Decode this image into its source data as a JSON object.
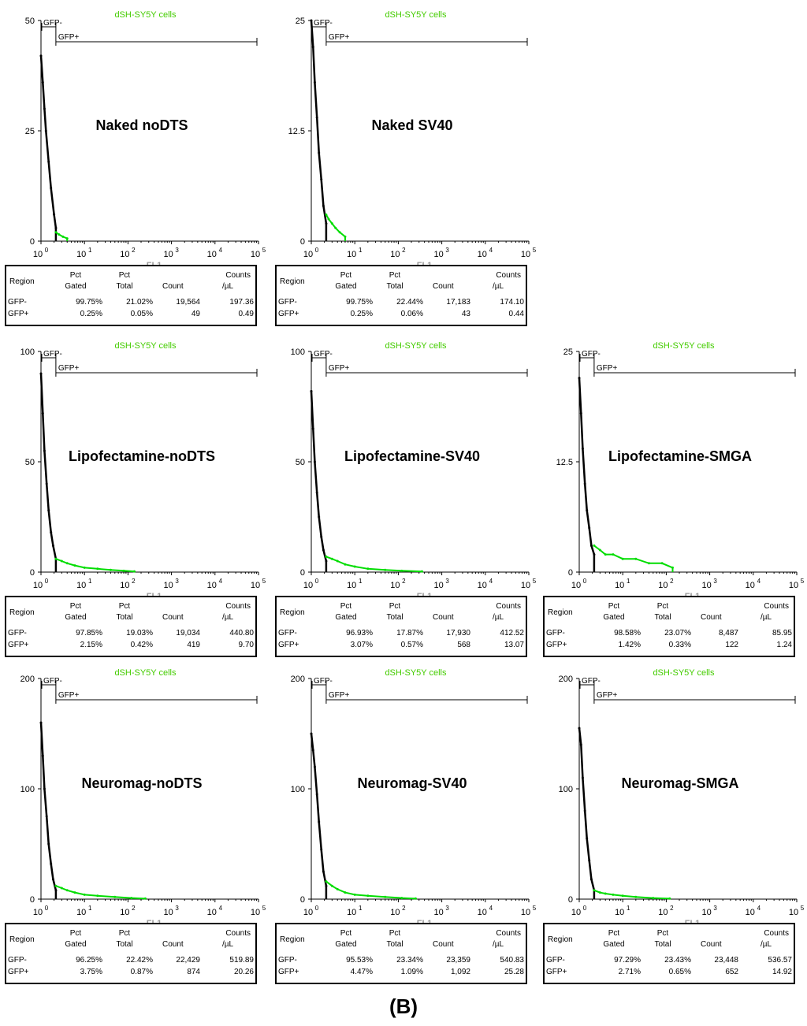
{
  "figure_label": "(B)",
  "colors": {
    "negative": "#000000",
    "positive": "#00dd00",
    "sample_label": "#44cc00",
    "axis_label": "#999999"
  },
  "x_axis_label": "FL1",
  "stats_headers": {
    "region": "Region",
    "pct_gated": [
      "Pct",
      "Gated"
    ],
    "pct_total": [
      "Pct",
      "Total"
    ],
    "count": "Count",
    "counts_ul": [
      "Counts",
      "/µL"
    ]
  },
  "chart_data": [
    {
      "type": "histogram",
      "title": "Naked noDTS",
      "sample_label": "dSH-SY5Y cells",
      "xlabel": "FL1",
      "x_scale": "log",
      "xlim": [
        1,
        100000
      ],
      "x_ticks": [
        "10",
        "10",
        "10",
        "10",
        "10",
        "10"
      ],
      "x_tick_exponents": [
        "0",
        "1",
        "2",
        "3",
        "4",
        "5"
      ],
      "y_ticks": [
        "0",
        "25",
        "50"
      ],
      "ylim": [
        0,
        50
      ],
      "gates": [
        {
          "name": "GFP-",
          "range": [
            1,
            2.2
          ]
        },
        {
          "name": "GFP+",
          "range": [
            2.2,
            100000
          ]
        }
      ],
      "series": [
        {
          "name": "GFP-",
          "x": [
            1.0,
            1.1,
            1.2,
            1.3,
            1.5,
            1.7,
            2.0,
            2.2
          ],
          "y": [
            42,
            36,
            30,
            25,
            18,
            12,
            6,
            3
          ]
        },
        {
          "name": "GFP+",
          "x": [
            2.2,
            2.6,
            3.2,
            4.0
          ],
          "y": [
            2,
            1.5,
            1,
            0.6
          ]
        }
      ],
      "stats": [
        {
          "region": "GFP-",
          "pct_gated": "99.75%",
          "pct_total": "21.02%",
          "count": "19,564",
          "counts_per_ul": "197.36"
        },
        {
          "region": "GFP+",
          "pct_gated": "0.25%",
          "pct_total": "0.05%",
          "count": "49",
          "counts_per_ul": "0.49"
        }
      ]
    },
    {
      "type": "histogram",
      "title": "Naked SV40",
      "sample_label": "dSH-SY5Y cells",
      "xlabel": "FL1",
      "x_scale": "log",
      "xlim": [
        1,
        100000
      ],
      "x_ticks": [
        "10",
        "10",
        "10",
        "10",
        "10",
        "10"
      ],
      "x_tick_exponents": [
        "0",
        "1",
        "2",
        "3",
        "4",
        "5"
      ],
      "y_ticks": [
        "0",
        "12.5",
        "25"
      ],
      "ylim": [
        0,
        25
      ],
      "gates": [
        {
          "name": "GFP-",
          "range": [
            1,
            2.2
          ]
        },
        {
          "name": "GFP+",
          "range": [
            2.2,
            100000
          ]
        }
      ],
      "series": [
        {
          "name": "GFP-",
          "x": [
            1.0,
            1.1,
            1.2,
            1.35,
            1.5,
            1.7,
            1.9,
            2.2
          ],
          "y": [
            25,
            22,
            18,
            14,
            10,
            7,
            4,
            2
          ]
        },
        {
          "name": "GFP+",
          "x": [
            2.2,
            2.5,
            3.0,
            3.6,
            4.5,
            6.0
          ],
          "y": [
            3,
            2.5,
            2,
            1.5,
            1,
            0.5
          ]
        }
      ],
      "stats": [
        {
          "region": "GFP-",
          "pct_gated": "99.75%",
          "pct_total": "22.44%",
          "count": "17,183",
          "counts_per_ul": "174.10"
        },
        {
          "region": "GFP+",
          "pct_gated": "0.25%",
          "pct_total": "0.06%",
          "count": "43",
          "counts_per_ul": "0.44"
        }
      ]
    },
    {
      "type": "histogram",
      "title": "Lipofectamine-noDTS",
      "sample_label": "dSH-SY5Y cells",
      "xlabel": "FL1",
      "x_scale": "log",
      "xlim": [
        1,
        100000
      ],
      "x_ticks": [
        "10",
        "10",
        "10",
        "10",
        "10",
        "10"
      ],
      "x_tick_exponents": [
        "0",
        "1",
        "2",
        "3",
        "4",
        "5"
      ],
      "y_ticks": [
        "0",
        "50",
        "100"
      ],
      "ylim": [
        0,
        100
      ],
      "gates": [
        {
          "name": "GFP-",
          "range": [
            1,
            2.2
          ]
        },
        {
          "name": "GFP+",
          "range": [
            2.2,
            100000
          ]
        }
      ],
      "series": [
        {
          "name": "GFP-",
          "x": [
            1.0,
            1.1,
            1.2,
            1.35,
            1.5,
            1.7,
            1.9,
            2.2
          ],
          "y": [
            90,
            72,
            55,
            40,
            28,
            18,
            12,
            6
          ]
        },
        {
          "name": "GFP+",
          "x": [
            2.2,
            3,
            4,
            6,
            10,
            20,
            40,
            80,
            140
          ],
          "y": [
            6,
            5,
            4,
            3,
            2,
            1.5,
            1,
            0.6,
            0.3
          ]
        }
      ],
      "stats": [
        {
          "region": "GFP-",
          "pct_gated": "97.85%",
          "pct_total": "19.03%",
          "count": "19,034",
          "counts_per_ul": "440.80"
        },
        {
          "region": "GFP+",
          "pct_gated": "2.15%",
          "pct_total": "0.42%",
          "count": "419",
          "counts_per_ul": "9.70"
        }
      ]
    },
    {
      "type": "histogram",
      "title": "Lipofectamine-SV40",
      "sample_label": "dSH-SY5Y cells",
      "xlabel": "FL1",
      "x_scale": "log",
      "xlim": [
        1,
        100000
      ],
      "x_ticks": [
        "10",
        "10",
        "10",
        "10",
        "10",
        "10"
      ],
      "x_tick_exponents": [
        "0",
        "1",
        "2",
        "3",
        "4",
        "5"
      ],
      "y_ticks": [
        "0",
        "50",
        "100"
      ],
      "ylim": [
        0,
        100
      ],
      "gates": [
        {
          "name": "GFP-",
          "range": [
            1,
            2.2
          ]
        },
        {
          "name": "GFP+",
          "range": [
            2.2,
            100000
          ]
        }
      ],
      "series": [
        {
          "name": "GFP-",
          "x": [
            1.0,
            1.1,
            1.2,
            1.35,
            1.5,
            1.7,
            1.9,
            2.2
          ],
          "y": [
            82,
            65,
            50,
            36,
            25,
            16,
            10,
            5
          ]
        },
        {
          "name": "GFP+",
          "x": [
            2.2,
            3,
            4,
            6,
            10,
            20,
            50,
            120,
            350
          ],
          "y": [
            7,
            6,
            5,
            3.5,
            2.5,
            1.5,
            1,
            0.6,
            0.3
          ]
        }
      ],
      "stats": [
        {
          "region": "GFP-",
          "pct_gated": "96.93%",
          "pct_total": "17.87%",
          "count": "17,930",
          "counts_per_ul": "412.52"
        },
        {
          "region": "GFP+",
          "pct_gated": "3.07%",
          "pct_total": "0.57%",
          "count": "568",
          "counts_per_ul": "13.07"
        }
      ]
    },
    {
      "type": "histogram",
      "title": "Lipofectamine-SMGA",
      "sample_label": "dSH-SY5Y cells",
      "xlabel": "FL1",
      "x_scale": "log",
      "xlim": [
        1,
        100000
      ],
      "x_ticks": [
        "10",
        "10",
        "10",
        "10",
        "10",
        "10"
      ],
      "x_tick_exponents": [
        "0",
        "1",
        "2",
        "3",
        "4",
        "5"
      ],
      "y_ticks": [
        "0",
        "12.5",
        "25"
      ],
      "ylim": [
        0,
        25
      ],
      "gates": [
        {
          "name": "GFP-",
          "range": [
            1,
            2.2
          ]
        },
        {
          "name": "GFP+",
          "range": [
            2.2,
            100000
          ]
        }
      ],
      "series": [
        {
          "name": "GFP-",
          "x": [
            1.0,
            1.1,
            1.2,
            1.35,
            1.5,
            1.7,
            1.9,
            2.2
          ],
          "y": [
            22,
            18,
            14,
            10,
            7,
            5,
            3,
            2
          ]
        },
        {
          "name": "GFP+",
          "x": [
            2.2,
            3,
            4,
            6,
            10,
            20,
            40,
            80,
            140
          ],
          "y": [
            3,
            2.5,
            2,
            2,
            1.5,
            1.5,
            1,
            1,
            0.5
          ]
        }
      ],
      "stats": [
        {
          "region": "GFP-",
          "pct_gated": "98.58%",
          "pct_total": "23.07%",
          "count": "8,487",
          "counts_per_ul": "85.95"
        },
        {
          "region": "GFP+",
          "pct_gated": "1.42%",
          "pct_total": "0.33%",
          "count": "122",
          "counts_per_ul": "1.24"
        }
      ]
    },
    {
      "type": "histogram",
      "title": "Neuromag-noDTS",
      "sample_label": "dSH-SY5Y cells",
      "xlabel": "FL1",
      "x_scale": "log",
      "xlim": [
        1,
        100000
      ],
      "x_ticks": [
        "10",
        "10",
        "10",
        "10",
        "10",
        "10"
      ],
      "x_tick_exponents": [
        "0",
        "1",
        "2",
        "3",
        "4",
        "5"
      ],
      "y_ticks": [
        "0",
        "100",
        "200"
      ],
      "ylim": [
        0,
        200
      ],
      "gates": [
        {
          "name": "GFP-",
          "range": [
            1,
            2.2
          ]
        },
        {
          "name": "GFP+",
          "range": [
            2.2,
            100000
          ]
        }
      ],
      "series": [
        {
          "name": "GFP-",
          "x": [
            1.0,
            1.1,
            1.2,
            1.35,
            1.5,
            1.7,
            1.9,
            2.2
          ],
          "y": [
            160,
            130,
            100,
            75,
            50,
            32,
            18,
            8
          ]
        },
        {
          "name": "GFP+",
          "x": [
            2.2,
            3,
            4,
            6,
            10,
            20,
            50,
            120,
            250
          ],
          "y": [
            12,
            10,
            8,
            6,
            4,
            3,
            2,
            1,
            0.5
          ]
        }
      ],
      "stats": [
        {
          "region": "GFP-",
          "pct_gated": "96.25%",
          "pct_total": "22.42%",
          "count": "22,429",
          "counts_per_ul": "519.89"
        },
        {
          "region": "GFP+",
          "pct_gated": "3.75%",
          "pct_total": "0.87%",
          "count": "874",
          "counts_per_ul": "20.26"
        }
      ]
    },
    {
      "type": "histogram",
      "title": "Neuromag-SV40",
      "sample_label": "dSH-SY5Y cells",
      "xlabel": "FL1",
      "x_scale": "log",
      "xlim": [
        1,
        100000
      ],
      "x_ticks": [
        "10",
        "10",
        "10",
        "10",
        "10",
        "10"
      ],
      "x_tick_exponents": [
        "0",
        "1",
        "2",
        "3",
        "4",
        "5"
      ],
      "y_ticks": [
        "0",
        "100",
        "200"
      ],
      "ylim": [
        0,
        200
      ],
      "gates": [
        {
          "name": "GFP-",
          "range": [
            1,
            2.2
          ]
        },
        {
          "name": "GFP+",
          "range": [
            2.2,
            100000
          ]
        }
      ],
      "series": [
        {
          "name": "GFP-",
          "x": [
            1.0,
            1.1,
            1.2,
            1.35,
            1.5,
            1.7,
            1.9,
            2.2
          ],
          "y": [
            150,
            135,
            120,
            95,
            70,
            45,
            25,
            12
          ]
        },
        {
          "name": "GFP+",
          "x": [
            2.2,
            3,
            4,
            6,
            10,
            20,
            50,
            120,
            250
          ],
          "y": [
            16,
            12,
            9,
            6,
            4,
            3,
            2,
            1,
            0.5
          ]
        }
      ],
      "stats": [
        {
          "region": "GFP-",
          "pct_gated": "95.53%",
          "pct_total": "23.34%",
          "count": "23,359",
          "counts_per_ul": "540.83"
        },
        {
          "region": "GFP+",
          "pct_gated": "4.47%",
          "pct_total": "1.09%",
          "count": "1,092",
          "counts_per_ul": "25.28"
        }
      ]
    },
    {
      "type": "histogram",
      "title": "Neuromag-SMGA",
      "sample_label": "dSH-SY5Y cells",
      "xlabel": "FL1",
      "x_scale": "log",
      "xlim": [
        1,
        100000
      ],
      "x_ticks": [
        "10",
        "10",
        "10",
        "10",
        "10",
        "10"
      ],
      "x_tick_exponents": [
        "0",
        "1",
        "2",
        "3",
        "4",
        "5"
      ],
      "y_ticks": [
        "0",
        "100",
        "200"
      ],
      "ylim": [
        0,
        200
      ],
      "gates": [
        {
          "name": "GFP-",
          "range": [
            1,
            2.2
          ]
        },
        {
          "name": "GFP+",
          "range": [
            2.2,
            100000
          ]
        }
      ],
      "series": [
        {
          "name": "GFP-",
          "x": [
            1.0,
            1.1,
            1.2,
            1.35,
            1.5,
            1.7,
            1.9,
            2.2
          ],
          "y": [
            155,
            140,
            110,
            80,
            55,
            35,
            18,
            8
          ]
        },
        {
          "name": "GFP+",
          "x": [
            2.2,
            3,
            4,
            6,
            10,
            20,
            50,
            120
          ],
          "y": [
            8,
            6,
            5,
            4,
            3,
            2,
            1,
            0.5
          ]
        }
      ],
      "stats": [
        {
          "region": "GFP-",
          "pct_gated": "97.29%",
          "pct_total": "23.43%",
          "count": "23,448",
          "counts_per_ul": "536.57"
        },
        {
          "region": "GFP+",
          "pct_gated": "2.71%",
          "pct_total": "0.65%",
          "count": "652",
          "counts_per_ul": "14.92"
        }
      ]
    }
  ]
}
